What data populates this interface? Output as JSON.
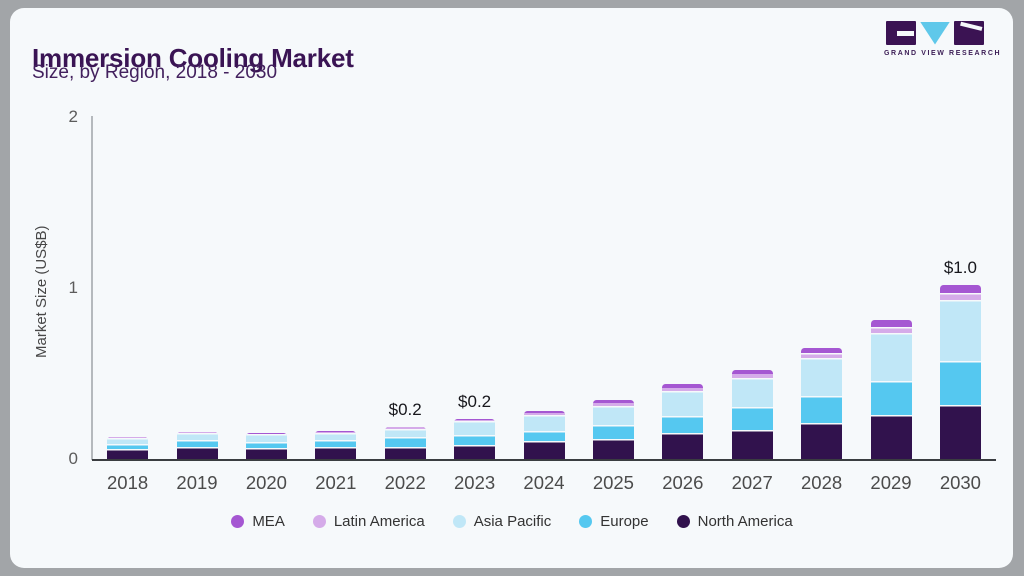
{
  "header": {
    "title": "Immersion Cooling Market",
    "subtitle": "Size, by Region, 2018 - 2030"
  },
  "logo": {
    "name": "Grand View Research",
    "wordmark": "GRAND VIEW RESEARCH"
  },
  "chart_data": {
    "type": "bar",
    "stacked": true,
    "title": "Immersion Cooling Market",
    "subtitle": "Size, by Region, 2018 - 2030",
    "xlabel": "",
    "ylabel": "Market Size (US$B)",
    "ylim": [
      0,
      2
    ],
    "yticks": [
      "0",
      "1",
      "2"
    ],
    "grid": false,
    "legend_position": "bottom",
    "categories": [
      "2018",
      "2019",
      "2020",
      "2021",
      "2022",
      "2023",
      "2024",
      "2025",
      "2026",
      "2027",
      "2028",
      "2029",
      "2030"
    ],
    "series": [
      {
        "name": "North America",
        "color": "#31124d",
        "values": [
          0.065,
          0.075,
          0.07,
          0.074,
          0.078,
          0.088,
          0.11,
          0.121,
          0.156,
          0.176,
          0.216,
          0.263,
          0.322
        ]
      },
      {
        "name": "Europe",
        "color": "#55c8f0",
        "values": [
          0.03,
          0.04,
          0.038,
          0.04,
          0.056,
          0.058,
          0.062,
          0.084,
          0.102,
          0.131,
          0.161,
          0.201,
          0.258
        ]
      },
      {
        "name": "Asia Pacific",
        "color": "#c0e7f7",
        "values": [
          0.035,
          0.045,
          0.042,
          0.045,
          0.05,
          0.082,
          0.09,
          0.113,
          0.143,
          0.17,
          0.217,
          0.28,
          0.356
        ]
      },
      {
        "name": "Latin America",
        "color": "#d5abe9",
        "values": [
          0.002,
          0.004,
          0.004,
          0.005,
          0.007,
          0.008,
          0.01,
          0.014,
          0.018,
          0.025,
          0.031,
          0.032,
          0.04
        ]
      },
      {
        "name": "MEA",
        "color": "#a557d2",
        "values": [
          0.001,
          0.002,
          0.002,
          0.003,
          0.004,
          0.005,
          0.013,
          0.019,
          0.023,
          0.023,
          0.029,
          0.04,
          0.045
        ]
      }
    ],
    "legend_order": [
      "MEA",
      "Latin America",
      "Asia Pacific",
      "Europe",
      "North America"
    ],
    "annotations": [
      {
        "category": "2022",
        "text": "$0.2"
      },
      {
        "category": "2023",
        "text": "$0.2"
      },
      {
        "category": "2030",
        "text": "$1.0"
      }
    ]
  },
  "colors": {
    "background_frame": "#a2a5a8",
    "card": "#f6f9fb",
    "title_text": "#3a1454",
    "axis_text": "#4b4b4b",
    "baseline": "#3a3d40",
    "axis_line": "#b5b9bd",
    "annotation_text": "#17171c",
    "legend_text": "#333333",
    "logo_purple": "#3b1353",
    "logo_blue": "#5fc8ea"
  }
}
